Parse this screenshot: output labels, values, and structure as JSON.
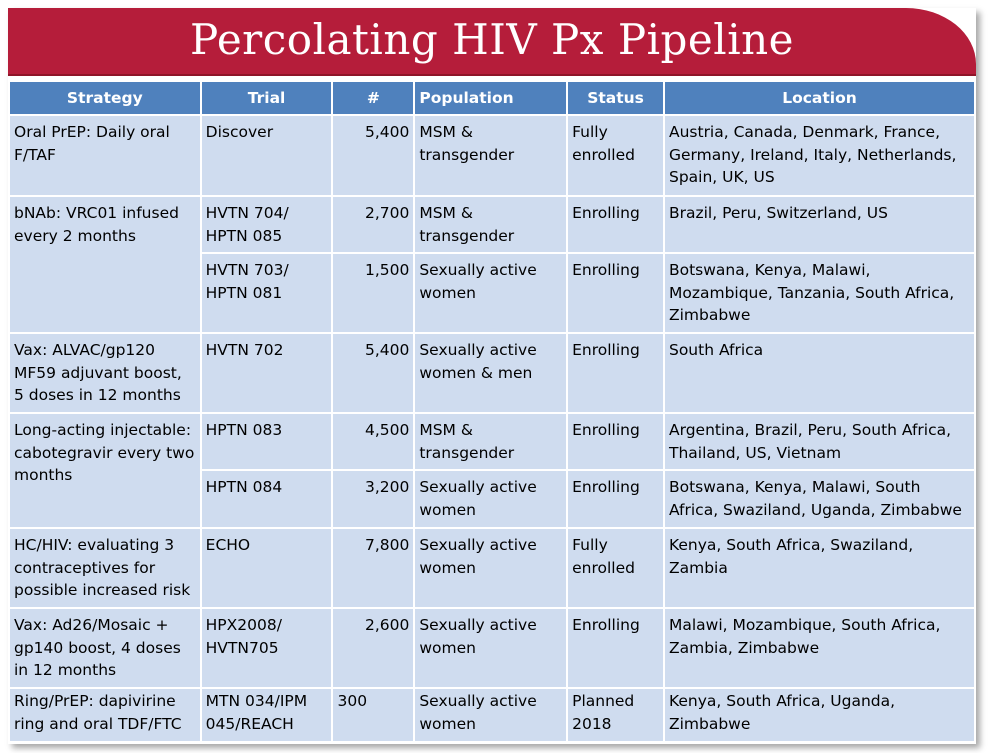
{
  "title": "Percolating HIV Px Pipeline",
  "columns": [
    "Strategy",
    "Trial",
    "#",
    "Population",
    "Status",
    "Location"
  ],
  "rows": [
    {
      "strategy": "Oral PrEP: Daily oral F/TAF",
      "trial": "Discover",
      "num": "5,400",
      "population": "MSM & transgender",
      "status": "Fully enrolled",
      "location": "Austria, Canada, Denmark, France, Germany, Ireland, Italy, Netherlands, Spain, UK, US"
    },
    {
      "strategy": "bNAb: VRC01 infused every 2 months",
      "trial": "HVTN 704/ HPTN 085",
      "num": "2,700",
      "population": "MSM & transgender",
      "status": "Enrolling",
      "location": "Brazil, Peru, Switzerland, US"
    },
    {
      "strategy": "",
      "trial": "HVTN 703/ HPTN 081",
      "num": "1,500",
      "population": "Sexually active women",
      "status": "Enrolling",
      "location": "Botswana, Kenya, Malawi, Mozambique, Tanzania, South Africa, Zimbabwe"
    },
    {
      "strategy": "Vax: ALVAC/gp120 MF59 adjuvant boost, 5 doses in 12 months",
      "trial": "HVTN 702",
      "num": "5,400",
      "population": "Sexually active women & men",
      "status": "Enrolling",
      "location": "South Africa"
    },
    {
      "strategy": "Long-acting injectable: cabotegravir every two months",
      "trial": "HPTN 083",
      "num": "4,500",
      "population": "MSM & transgender",
      "status": "Enrolling",
      "location": "Argentina, Brazil, Peru, South Africa, Thailand, US, Vietnam"
    },
    {
      "strategy": "",
      "trial": "HPTN 084",
      "num": "3,200",
      "population": "Sexually active women",
      "status": "Enrolling",
      "location": "Botswana, Kenya, Malawi, South Africa, Swaziland, Uganda, Zimbabwe"
    },
    {
      "strategy": "HC/HIV: evaluating 3 contraceptives for possible increased risk",
      "trial": "ECHO",
      "num": "7,800",
      "population": "Sexually active women",
      "status": "Fully enrolled",
      "location": "Kenya, South Africa, Swaziland, Zambia"
    },
    {
      "strategy": "Vax: Ad26/Mosaic + gp140 boost, 4 doses in 12 months",
      "trial": "HPX2008/ HVTN705",
      "num": "2,600",
      "population": "Sexually active women",
      "status": "Enrolling",
      "location": "Malawi, Mozambique, South Africa, Zambia, Zimbabwe"
    },
    {
      "strategy": "Ring/PrEP: dapivirine ring and oral TDF/FTC",
      "trial": "MTN 034/IPM 045/REACH",
      "num": "300",
      "population": "Sexually active women",
      "status": "Planned 2018",
      "location": "Kenya, South Africa, Uganda, Zimbabwe"
    }
  ],
  "colors": {
    "banner": "#b51d3a",
    "header": "#4f81bd",
    "cell": "#cfdcef"
  }
}
